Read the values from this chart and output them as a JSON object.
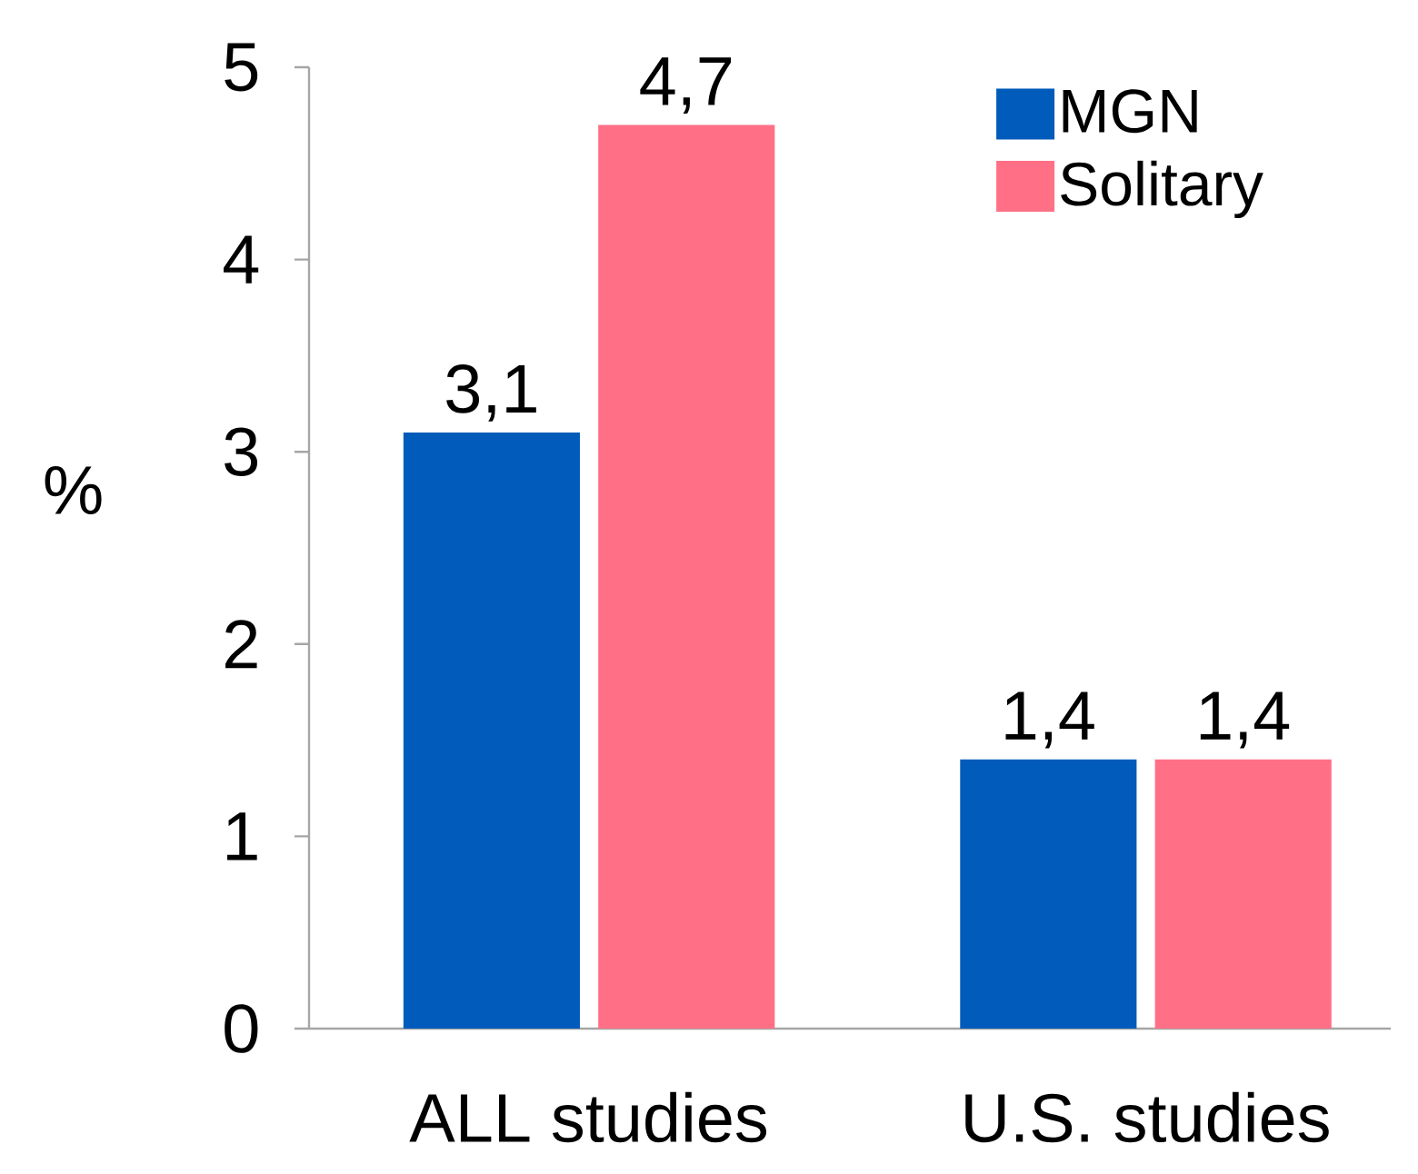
{
  "chart_data": {
    "type": "bar",
    "ylabel": "%",
    "categories": [
      "ALL studies",
      "U.S. studies"
    ],
    "series": [
      {
        "name": "MGN",
        "color": "#005bbb",
        "values": [
          3.1,
          1.4
        ],
        "value_labels": [
          "3,1",
          "1,4"
        ]
      },
      {
        "name": "Solitary",
        "color": "#ff7086",
        "values": [
          4.7,
          1.4
        ],
        "value_labels": [
          "4,7",
          "1,4"
        ]
      }
    ],
    "ylim": [
      0,
      5
    ],
    "yticks": [
      0,
      1,
      2,
      3,
      4,
      5
    ],
    "legend": "top right",
    "grid": false
  }
}
